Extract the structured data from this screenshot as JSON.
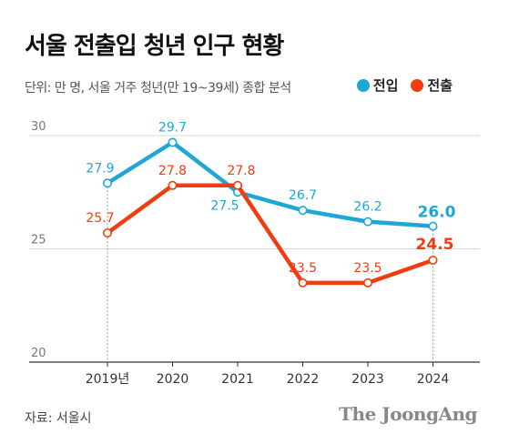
{
  "header": {
    "title": "서울 전출입 청년 인구 현황",
    "subtitle": "단위: 만 명, 서울 거주 청년(만 19~39세) 종합 분석"
  },
  "legend": [
    {
      "label": "전입",
      "color": "#1ea7d6"
    },
    {
      "label": "전출",
      "color": "#f03c0e"
    }
  ],
  "footer": {
    "source": "자료: 서울시",
    "brand": "The JoongAng"
  },
  "chart_data": {
    "type": "line",
    "categories": [
      "2019년",
      "2020",
      "2021",
      "2022",
      "2023",
      "2024"
    ],
    "yticks": [
      20,
      25,
      30
    ],
    "ylim": [
      20,
      30
    ],
    "grid": true,
    "legend_position": "top-right",
    "series": [
      {
        "name": "전입",
        "color": "#1ea7d6",
        "values": [
          27.9,
          29.7,
          27.5,
          26.7,
          26.2,
          26.0
        ],
        "labels": [
          "27.9",
          "29.7",
          "27.5",
          "26.7",
          "26.2",
          "26.0"
        ]
      },
      {
        "name": "전출",
        "color": "#f03c0e",
        "values": [
          25.7,
          27.8,
          27.8,
          23.5,
          23.5,
          24.5
        ],
        "labels": [
          "25.7",
          "27.8",
          "27.8",
          "23.5",
          "23.5",
          "24.5"
        ]
      }
    ]
  }
}
